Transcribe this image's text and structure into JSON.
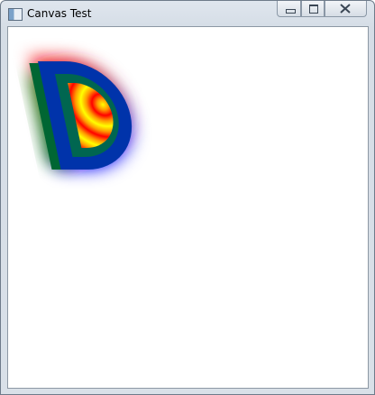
{
  "window": {
    "title": "Canvas Test"
  }
}
